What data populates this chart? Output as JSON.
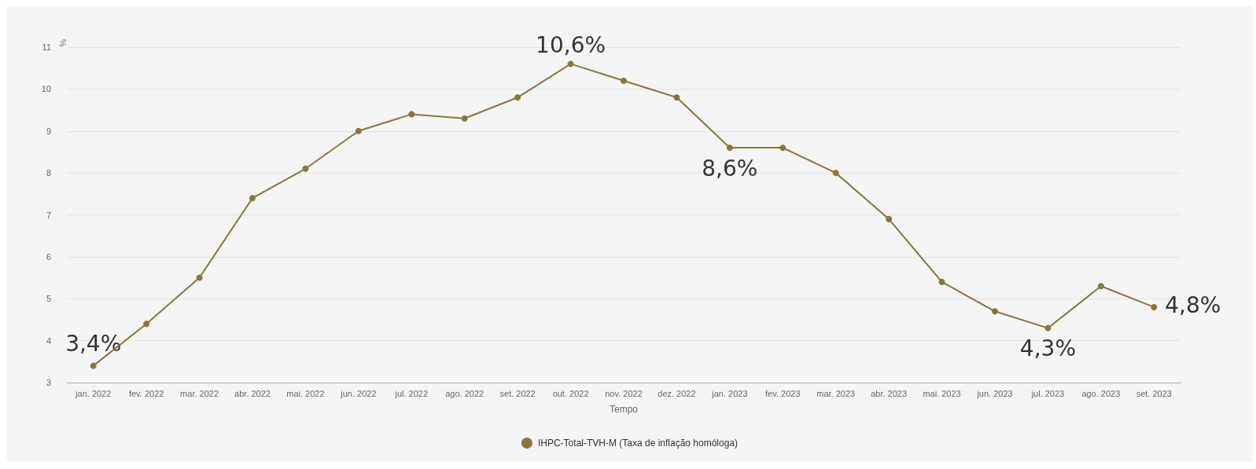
{
  "chart_data": {
    "type": "line",
    "xlabel": "Tempo",
    "ylabel": "%",
    "categories": [
      "jan. 2022",
      "fev. 2022",
      "mar. 2022",
      "abr. 2022",
      "mai. 2022",
      "jun. 2022",
      "jul. 2022",
      "ago. 2022",
      "set. 2022",
      "out. 2022",
      "nov. 2022",
      "dez. 2022",
      "jan. 2023",
      "fev. 2023",
      "mar. 2023",
      "abr. 2023",
      "mai. 2023",
      "jun. 2023",
      "jul. 2023",
      "ago. 2023",
      "set. 2023"
    ],
    "series": [
      {
        "name": "IHPC-Total-TVH-M (Taxa de inflação homóloga)",
        "color": "#8c7538",
        "values": [
          3.4,
          4.4,
          5.5,
          7.4,
          8.1,
          9.0,
          9.4,
          9.3,
          9.8,
          10.6,
          10.2,
          9.8,
          8.6,
          8.6,
          8.0,
          6.9,
          5.4,
          4.7,
          4.3,
          5.3,
          4.8
        ]
      }
    ],
    "ylim": [
      3,
      11
    ],
    "yticks": [
      3,
      4,
      5,
      6,
      7,
      8,
      9,
      10,
      11
    ],
    "grid": "y",
    "legend": "bottom",
    "marker": "circle",
    "line_style": "solid",
    "annotations": [
      {
        "text": "3,4%",
        "x": "jan. 2022",
        "y": 3.4
      },
      {
        "text": "10,6%",
        "x": "out. 2022",
        "y": 10.6
      },
      {
        "text": "8,6%",
        "x": "jan. 2023",
        "y": 8.6
      },
      {
        "text": "4,3%",
        "x": "jul. 2023",
        "y": 4.3
      },
      {
        "text": "4,8%",
        "x": "set. 2023",
        "y": 4.8
      }
    ]
  }
}
